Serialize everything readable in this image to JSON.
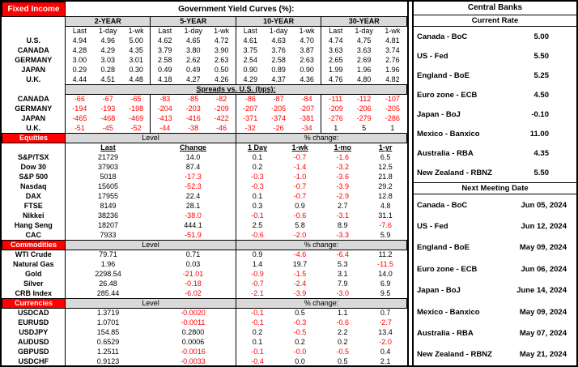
{
  "fixed_income": {
    "section_label": "Fixed Income",
    "title": "Government Yield Curves (%):",
    "tenors": [
      "2-YEAR",
      "5-YEAR",
      "10-YEAR",
      "30-YEAR"
    ],
    "sub_headers": [
      "Last",
      "1-day",
      "1-wk"
    ],
    "yield_rows": [
      {
        "label": "U.S.",
        "v": [
          "4.94",
          "4.96",
          "5.00",
          "4.62",
          "4.65",
          "4.72",
          "4.61",
          "4.63",
          "4.70",
          "4.74",
          "4.75",
          "4.81"
        ]
      },
      {
        "label": "CANADA",
        "v": [
          "4.28",
          "4.29",
          "4.35",
          "3.79",
          "3.80",
          "3.90",
          "3.75",
          "3.76",
          "3.87",
          "3.63",
          "3.63",
          "3.74"
        ]
      },
      {
        "label": "GERMANY",
        "v": [
          "3.00",
          "3.03",
          "3.01",
          "2.58",
          "2.62",
          "2.63",
          "2.54",
          "2.58",
          "2.63",
          "2.65",
          "2.69",
          "2.76"
        ]
      },
      {
        "label": "JAPAN",
        "v": [
          "0.29",
          "0.28",
          "0.30",
          "0.49",
          "0.49",
          "0.50",
          "0.90",
          "0.89",
          "0.90",
          "1.99",
          "1.96",
          "1.96"
        ]
      },
      {
        "label": "U.K.",
        "v": [
          "4.44",
          "4.51",
          "4.48",
          "4.18",
          "4.27",
          "4.26",
          "4.29",
          "4.37",
          "4.36",
          "4.76",
          "4.80",
          "4.82"
        ]
      }
    ],
    "spreads_title": "Spreads vs. U.S. (bps):",
    "spread_rows": [
      {
        "label": "CANADA",
        "v": [
          "-66",
          "-67",
          "-65",
          "-83",
          "-85",
          "-82",
          "-86",
          "-87",
          "-84",
          "-111",
          "-112",
          "-107"
        ]
      },
      {
        "label": "GERMANY",
        "v": [
          "-194",
          "-193",
          "-198",
          "-204",
          "-203",
          "-209",
          "-207",
          "-205",
          "-207",
          "-209",
          "-206",
          "-205"
        ]
      },
      {
        "label": "JAPAN",
        "v": [
          "-465",
          "-468",
          "-469",
          "-413",
          "-416",
          "-422",
          "-371",
          "-374",
          "-381",
          "-276",
          "-279",
          "-286"
        ]
      },
      {
        "label": "U.K.",
        "v": [
          "-51",
          "-45",
          "-52",
          "-44",
          "-38",
          "-46",
          "-32",
          "-26",
          "-34",
          "1",
          "5",
          "1"
        ]
      }
    ]
  },
  "equities": {
    "section_label": "Equities",
    "level_header": "Level",
    "pct_header": "% change:",
    "sub_headers": [
      "Last",
      "Change",
      "1 Day",
      "1-wk",
      "1-mo",
      "1-yr"
    ],
    "rows": [
      {
        "label": "S&P/TSX",
        "v": [
          "21729",
          "14.0",
          "0.1",
          "-0.7",
          "-1.6",
          "6.5"
        ]
      },
      {
        "label": "Dow 30",
        "v": [
          "37903",
          "87.4",
          "0.2",
          "-1.4",
          "-3.2",
          "12.5"
        ]
      },
      {
        "label": "S&P 500",
        "v": [
          "5018",
          "-17.3",
          "-0.3",
          "-1.0",
          "-3.6",
          "21.8"
        ]
      },
      {
        "label": "Nasdaq",
        "v": [
          "15605",
          "-52.3",
          "-0.3",
          "-0.7",
          "-3.9",
          "29.2"
        ]
      },
      {
        "label": "DAX",
        "v": [
          "17955",
          "22.4",
          "0.1",
          "-0.7",
          "-2.9",
          "12.8"
        ]
      },
      {
        "label": "FTSE",
        "v": [
          "8149",
          "28.1",
          "0.3",
          "0.9",
          "2.7",
          "4.8"
        ]
      },
      {
        "label": "Nikkei",
        "v": [
          "38236",
          "-38.0",
          "-0.1",
          "-0.6",
          "-3.1",
          "31.1"
        ]
      },
      {
        "label": "Hang Seng",
        "v": [
          "18207",
          "444.1",
          "2.5",
          "5.8",
          "8.9",
          "-7.6"
        ]
      },
      {
        "label": "CAC",
        "v": [
          "7933",
          "-51.9",
          "-0.6",
          "-2.0",
          "-3.3",
          "5.9"
        ]
      }
    ]
  },
  "commodities": {
    "section_label": "Commodities",
    "level_header": "Level",
    "pct_header": "% change:",
    "rows": [
      {
        "label": "WTI Crude",
        "v": [
          "79.71",
          "0.71",
          "0.9",
          "-4.6",
          "-6.4",
          "11.2"
        ]
      },
      {
        "label": "Natural Gas",
        "v": [
          "1.96",
          "0.03",
          "1.4",
          "19.7",
          "5.3",
          "-11.5"
        ]
      },
      {
        "label": "Gold",
        "v": [
          "2298.54",
          "-21.01",
          "-0.9",
          "-1.5",
          "3.1",
          "14.0"
        ]
      },
      {
        "label": "Silver",
        "v": [
          "26.48",
          "-0.18",
          "-0.7",
          "-2.4",
          "7.9",
          "6.9"
        ]
      },
      {
        "label": "CRB Index",
        "v": [
          "285.44",
          "-6.02",
          "-2.1",
          "-3.9",
          "-3.0",
          "9.5"
        ]
      }
    ]
  },
  "currencies": {
    "section_label": "Currencies",
    "level_header": "Level",
    "pct_header": "% change:",
    "rows": [
      {
        "label": "USDCAD",
        "v": [
          "1.3719",
          "-0.0020",
          "-0.1",
          "0.5",
          "1.1",
          "0.7"
        ]
      },
      {
        "label": "EURUSD",
        "v": [
          "1.0701",
          "-0.0011",
          "-0.1",
          "-0.3",
          "-0.6",
          "-2.7"
        ]
      },
      {
        "label": "USDJPY",
        "v": [
          "154.85",
          "0.2800",
          "0.2",
          "-0.5",
          "2.2",
          "13.4"
        ]
      },
      {
        "label": "AUDUSD",
        "v": [
          "0.6529",
          "0.0006",
          "0.1",
          "0.2",
          "0.2",
          "-2.0"
        ]
      },
      {
        "label": "GBPUSD",
        "v": [
          "1.2511",
          "-0.0016",
          "-0.1",
          "-0.0",
          "-0.5",
          "0.4"
        ]
      },
      {
        "label": "USDCHF",
        "v": [
          "0.9123",
          "-0.0033",
          "-0.4",
          "0.0",
          "0.5",
          "2.1"
        ]
      }
    ]
  },
  "central_banks": {
    "title": "Central Banks",
    "current_rate": {
      "header": "Current Rate",
      "rows": [
        {
          "label": "Canada - BoC",
          "v": [
            "5.00"
          ]
        },
        {
          "label": "US - Fed",
          "v": [
            "5.50"
          ]
        },
        {
          "label": "England - BoE",
          "v": [
            "5.25"
          ]
        },
        {
          "label": "Euro zone - ECB",
          "v": [
            "4.50"
          ]
        },
        {
          "label": "Japan - BoJ",
          "v": [
            "-0.10"
          ]
        },
        {
          "label": "Mexico - Banxico",
          "v": [
            "11.00"
          ]
        },
        {
          "label": "Australia - RBA",
          "v": [
            "4.35"
          ]
        },
        {
          "label": "New Zealand - RBNZ",
          "v": [
            "5.50"
          ]
        }
      ]
    },
    "next_meeting": {
      "header": "Next Meeting Date",
      "rows": [
        {
          "label": "Canada - BoC",
          "v": [
            "Jun 05, 2024"
          ]
        },
        {
          "label": "US - Fed",
          "v": [
            "Jun 12, 2024"
          ]
        },
        {
          "label": "England - BoE",
          "v": [
            "May 09, 2024"
          ]
        },
        {
          "label": "Euro zone - ECB",
          "v": [
            "Jun 06, 2024"
          ]
        },
        {
          "label": "Japan - BoJ",
          "v": [
            "June 14, 2024"
          ]
        },
        {
          "label": "Mexico - Banxico",
          "v": [
            "May 09, 2024"
          ]
        },
        {
          "label": "Australia - RBA",
          "v": [
            "May 07, 2024"
          ]
        },
        {
          "label": "New Zealand - RBNZ",
          "v": [
            "May 21, 2024"
          ]
        }
      ]
    }
  },
  "colors": {
    "section_bg": "#ff0000",
    "negative_text": "#ff0000",
    "header_bg": "#d9d9d9"
  }
}
